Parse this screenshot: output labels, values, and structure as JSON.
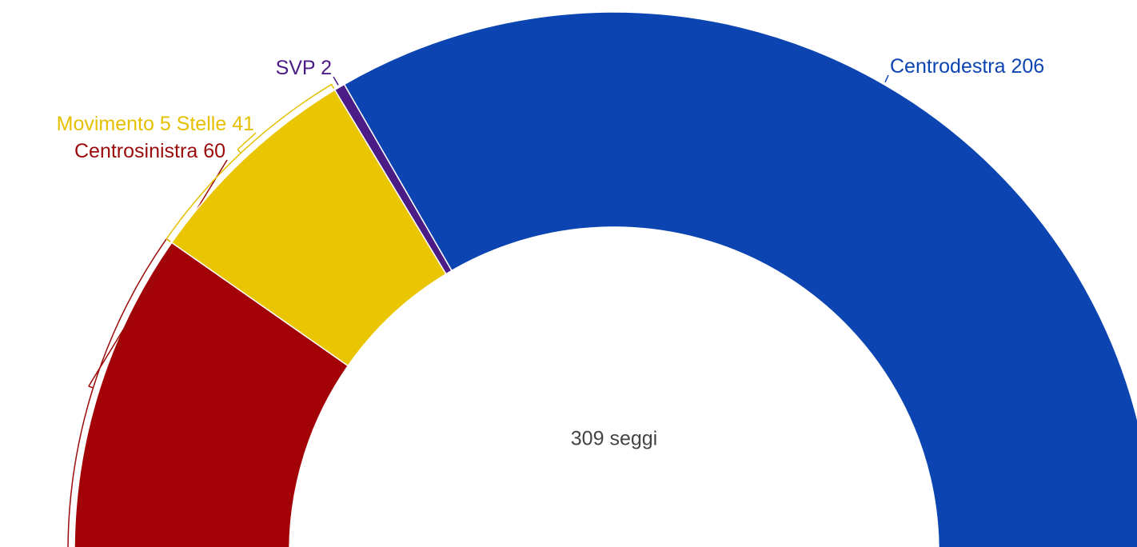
{
  "chart_data": {
    "type": "pie",
    "subtype": "half-donut",
    "center_label": "309 seggi",
    "categories": [
      "Centrosinistra",
      "Movimento 5 Stelle",
      "SVP",
      "Centrodestra"
    ],
    "values": [
      60,
      41,
      2,
      206
    ],
    "colors": [
      "#a30306",
      "#eac501",
      "#4b1c86",
      "#0c45b2"
    ]
  }
}
